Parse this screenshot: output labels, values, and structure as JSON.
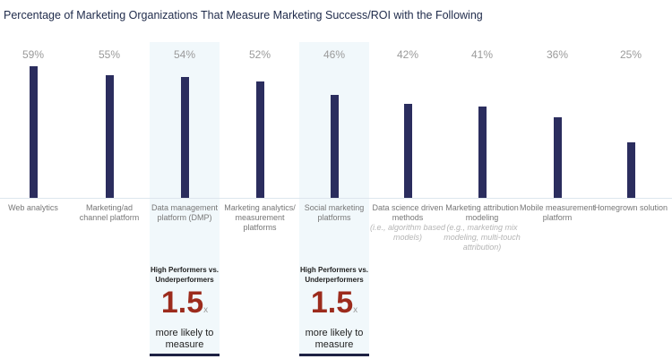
{
  "chart_data": {
    "type": "bar",
    "title": "Percentage of Marketing Organizations That Measure Marketing Success/ROI with the Following",
    "ylim": [
      0,
      62
    ],
    "grid": false,
    "categories": [
      {
        "label": "Web analytics",
        "note": ""
      },
      {
        "label": "Marketing/ad channel platform",
        "note": ""
      },
      {
        "label": "Data management platform (DMP)",
        "note": ""
      },
      {
        "label": "Marketing analytics/ measurement platforms",
        "note": ""
      },
      {
        "label": "Social marketing platforms",
        "note": ""
      },
      {
        "label": "Data science driven methods",
        "note": "(i.e., algorithm based models)"
      },
      {
        "label": "Marketing attribution modeling",
        "note": "(e.g., marketing mix modeling, multi-touch attribution)"
      },
      {
        "label": "Mobile measurement platform",
        "note": ""
      },
      {
        "label": "Homegrown solution",
        "note": ""
      }
    ],
    "values": [
      59,
      55,
      54,
      52,
      46,
      42,
      41,
      36,
      25
    ],
    "value_labels": [
      "59%",
      "55%",
      "54%",
      "52%",
      "46%",
      "42%",
      "41%",
      "36%",
      "25%"
    ],
    "highlighted_categories": [
      2,
      4
    ]
  },
  "callouts": [
    {
      "category_index": 2,
      "heading": "High Performers vs. Underperformers",
      "multiplier": "1.5",
      "unit": "x",
      "caption": "more likely to measure"
    },
    {
      "category_index": 4,
      "heading": "High Performers vs. Underperformers",
      "multiplier": "1.5",
      "unit": "x",
      "caption": "more likely to measure"
    }
  ],
  "colors": {
    "bar": "#2b2d5e",
    "highlight": "#f1f8fb",
    "multiplier": "#9c2b1c"
  }
}
